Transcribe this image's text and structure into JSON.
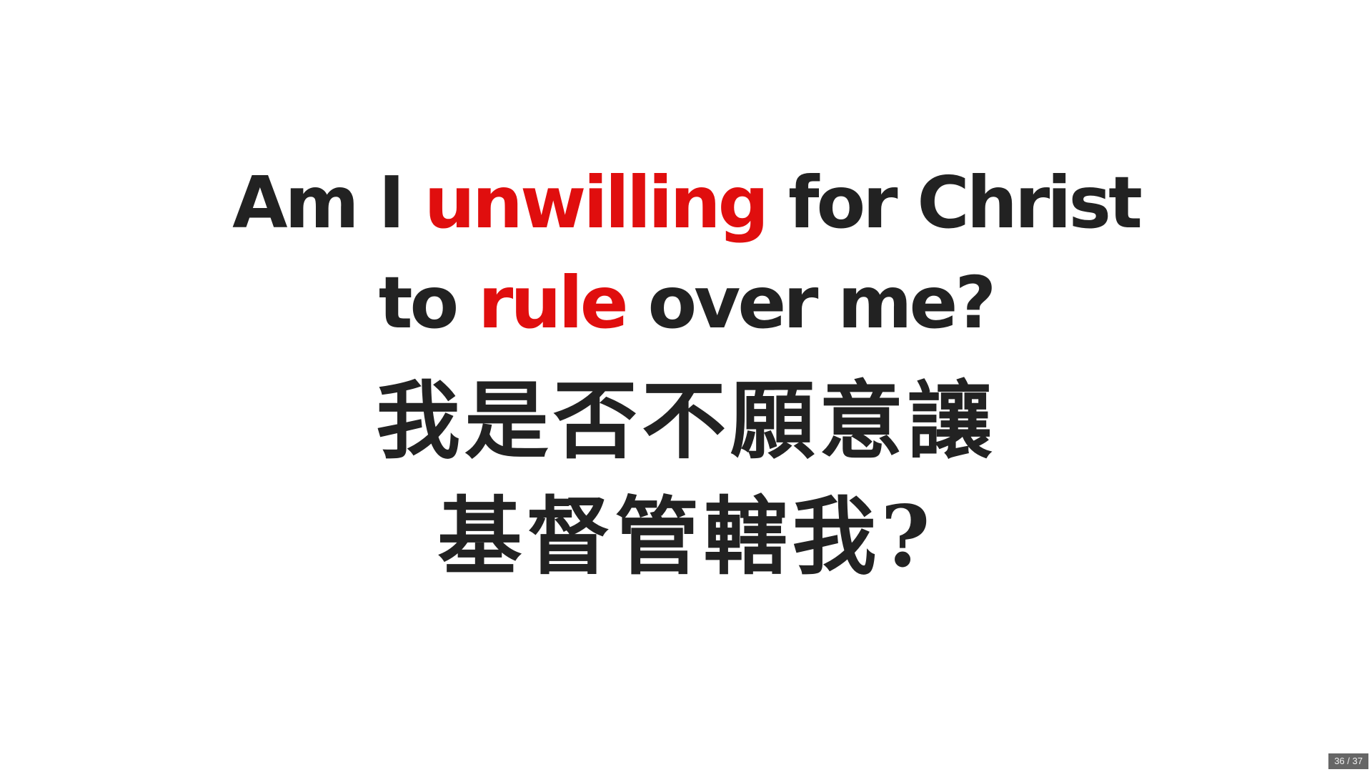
{
  "slide": {
    "line1": {
      "pre": "Am I ",
      "highlight": "unwilling",
      "post": " for Christ"
    },
    "line2": {
      "pre": "to ",
      "highlight": "rule",
      "post": " over me?"
    },
    "zh_line1": "我是否不願意讓",
    "zh_line2": "基督管轄我?"
  },
  "counter": {
    "current": "36",
    "separator": "/",
    "total": "37"
  },
  "colors": {
    "text": "#222222",
    "highlight": "#e00e0e",
    "background": "#ffffff",
    "counter_bg": "#666666"
  }
}
